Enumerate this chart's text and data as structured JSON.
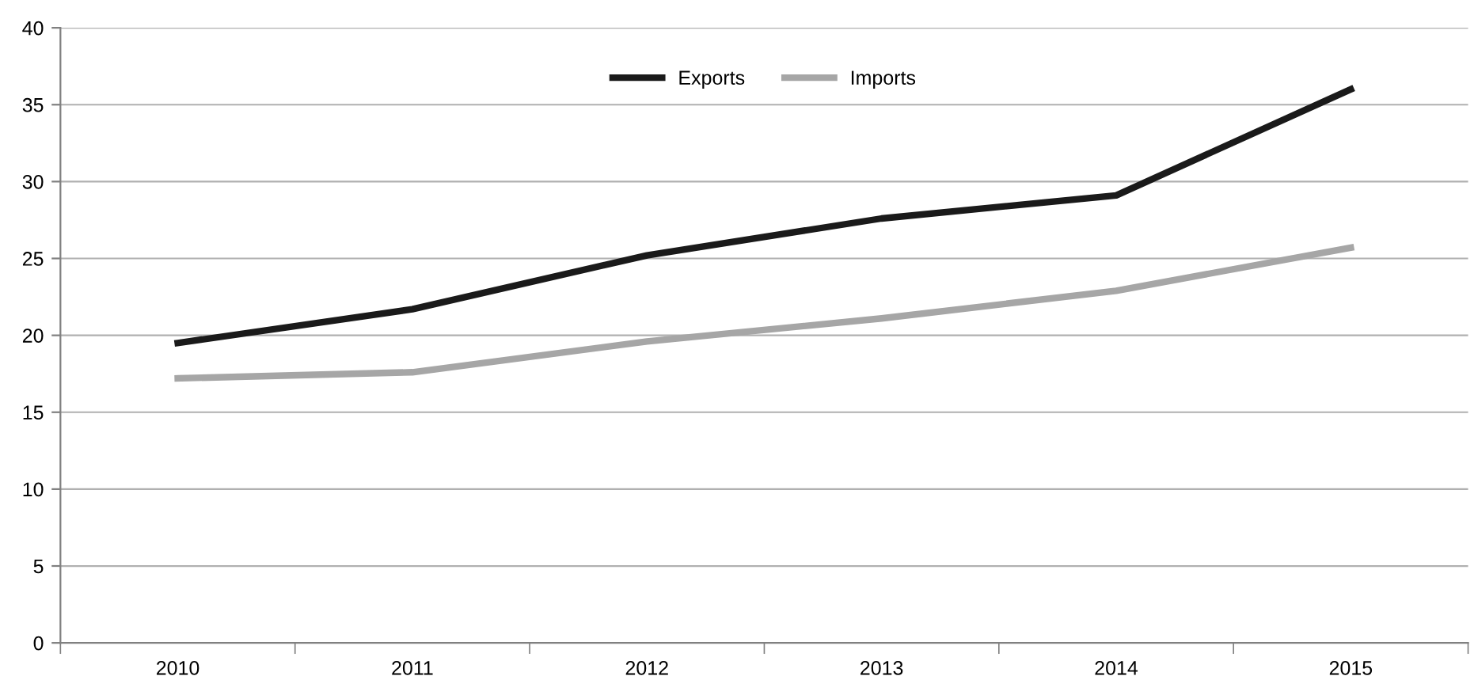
{
  "chart_data": {
    "type": "line",
    "categories": [
      "2010",
      "2011",
      "2012",
      "2013",
      "2014",
      "2015"
    ],
    "series": [
      {
        "name": "Exports",
        "color": "#1a1a1a",
        "values": [
          19.5,
          21.7,
          25.2,
          27.6,
          29.1,
          36.0
        ]
      },
      {
        "name": "Imports",
        "color": "#a6a6a6",
        "values": [
          17.2,
          17.6,
          19.6,
          21.1,
          22.9,
          25.7
        ]
      }
    ],
    "ylim": [
      0,
      40
    ],
    "yticks": [
      0,
      5,
      10,
      15,
      20,
      25,
      30,
      35,
      40
    ],
    "grid": "y",
    "legend": "top",
    "marker": "none",
    "line_style": "solid"
  }
}
